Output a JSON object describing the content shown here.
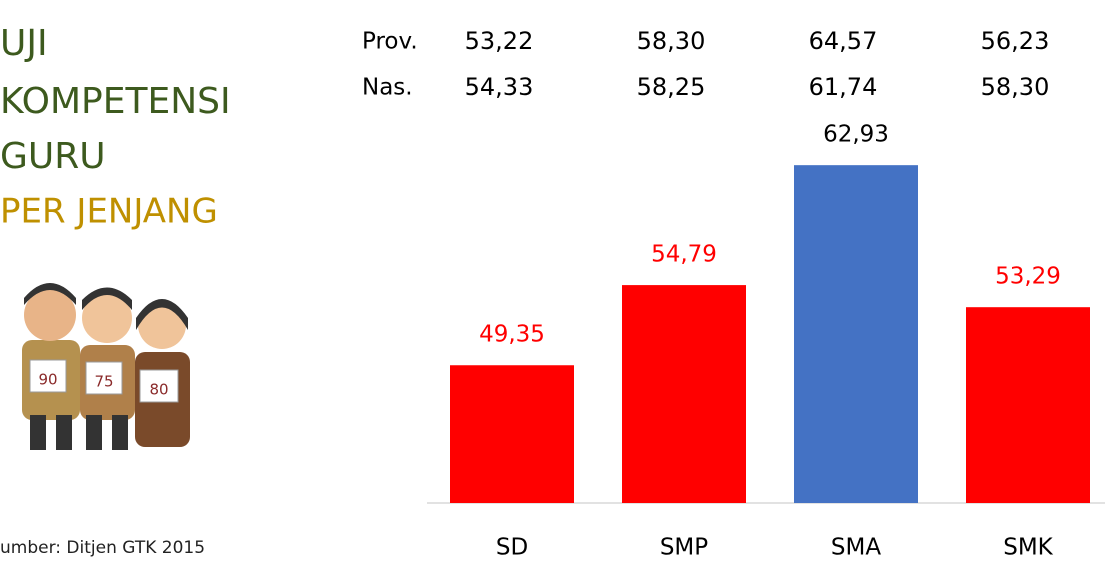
{
  "title_lines": [
    "UJI",
    "KOMPETENSI",
    "GURU"
  ],
  "subtitle": "PER JENJANG",
  "source": "umber: Ditjen GTK 2015",
  "illustration_cards": [
    "90",
    "75",
    "80"
  ],
  "chart_data": {
    "type": "bar",
    "categories": [
      "SD",
      "SMP",
      "SMA",
      "SMK"
    ],
    "values": [
      49.35,
      54.79,
      62.93,
      53.29
    ],
    "value_labels": [
      "49,35",
      "54,79",
      "62,93",
      "53,29"
    ],
    "colors": [
      "#ff0000",
      "#ff0000",
      "#4472c4",
      "#ff0000"
    ],
    "label_colors": [
      "#ff0000",
      "#ff0000",
      "#000000",
      "#ff0000"
    ],
    "ylim": [
      40,
      70
    ],
    "table_rows": [
      {
        "name": "Prov.",
        "labels": [
          "53,22",
          "58,30",
          "64,57",
          "56,23"
        ]
      },
      {
        "name": "Nas.",
        "labels": [
          "54,33",
          "58,25",
          "61,74",
          "58,30"
        ]
      }
    ]
  }
}
